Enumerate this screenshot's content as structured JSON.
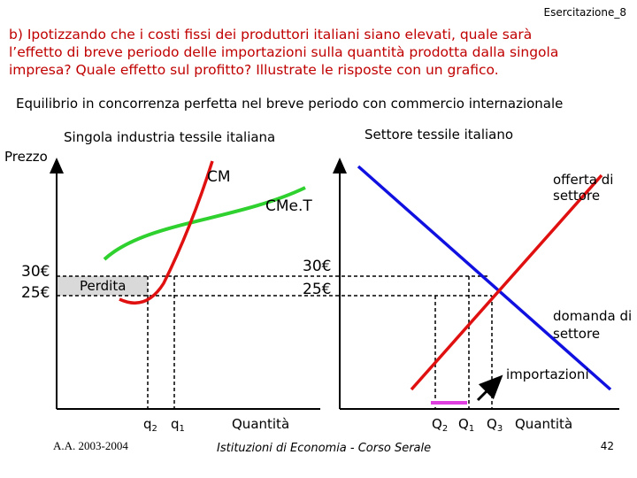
{
  "header": {
    "exercise": "Esercitazione_8"
  },
  "question": {
    "lines": [
      "b) Ipotizzando che i costi fissi dei produttori italiani siano elevati, quale sarà",
      "l’effetto di breve periodo delle importazioni sulla quantità prodotta dalla singola",
      "impresa? Quale effetto sul profitto? Illustrate le risposte con un grafico."
    ]
  },
  "subtitle": "Equilibrio in concorrenza perfetta nel breve periodo con commercio internazionale",
  "left_panel": {
    "title": "Singola industria tessile italiana",
    "y_label": "Prezzo",
    "curve_mc": "CM",
    "curve_atc": "CMe.T",
    "price_high": "30€",
    "price_low": "25€",
    "loss": "Perdita",
    "q2": {
      "letter": "q",
      "sub": "2"
    },
    "q1": {
      "letter": "q",
      "sub": "1"
    },
    "x_label": "Quantità"
  },
  "right_panel": {
    "title": "Settore tessile italiano",
    "price_high": "30€",
    "price_low": "25€",
    "supply": [
      "offerta di",
      "settore"
    ],
    "demand": [
      "domanda di",
      "settore"
    ],
    "imports": "importazioni",
    "Q2": {
      "letter": "Q",
      "sub": "2"
    },
    "Q1": {
      "letter": "Q",
      "sub": "1"
    },
    "Q3": {
      "letter": "Q",
      "sub": "3"
    },
    "x_label": "Quantità"
  },
  "footer": {
    "year": "A.A. 2003-2004",
    "course": "Istituzioni di Economia - Corso Serale",
    "page": "42"
  }
}
